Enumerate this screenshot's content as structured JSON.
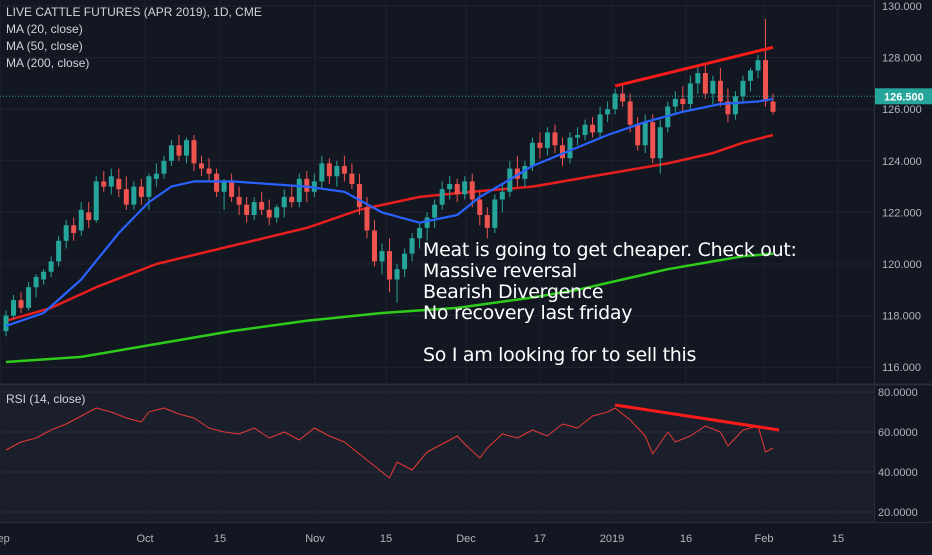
{
  "legend": {
    "title": "LIVE CATTLE FUTURES (APR 2019), 1D, CME",
    "ma20": "MA (20, close)",
    "ma50": "MA (50, close)",
    "ma200": "MA (200, close)"
  },
  "rsi_legend": "RSI (14, close)",
  "note": {
    "line1": "Meat is going to get cheaper. Check out:",
    "line2": "Massive reversal",
    "line3": "Bearish Divergence",
    "line4": "No recovery last friday",
    "line5": "",
    "line6": "So I am looking for to sell this"
  },
  "last_price_label": "126.500",
  "colors": {
    "background": "#131722",
    "up": "#26a69a",
    "down": "#ef5350",
    "ma20": "#2962ff",
    "ma50": "#e91e1e",
    "ma200": "#2ecc1a",
    "rsi": "#e53935",
    "trendline": "#ff1a1a"
  },
  "chart_data": [
    {
      "type": "candlestick",
      "title": "LIVE CATTLE FUTURES (APR 2019), 1D, CME",
      "price_axis_ticks": [
        "130.000",
        "128.000",
        "126.000",
        "124.000",
        "122.000",
        "120.000",
        "118.000",
        "116.000"
      ],
      "time_axis_ticks": [
        "Sep",
        "Oct",
        "15",
        "Nov",
        "15",
        "Dec",
        "17",
        "2019",
        "16",
        "Feb",
        "15"
      ],
      "ylim": [
        115.6,
        130.2
      ],
      "last_price": 126.5,
      "ohlc": [
        [
          117.4,
          118.2,
          117.2,
          118.0
        ],
        [
          118.0,
          118.8,
          117.9,
          118.6
        ],
        [
          118.6,
          118.9,
          118.1,
          118.3
        ],
        [
          118.3,
          119.3,
          118.2,
          119.1
        ],
        [
          119.1,
          119.6,
          118.7,
          119.5
        ],
        [
          119.4,
          119.8,
          119.2,
          119.7
        ],
        [
          119.7,
          120.3,
          119.5,
          120.1
        ],
        [
          120.1,
          121.1,
          119.9,
          120.9
        ],
        [
          120.9,
          121.7,
          120.6,
          121.5
        ],
        [
          121.5,
          121.8,
          120.9,
          121.2
        ],
        [
          121.3,
          122.4,
          121.1,
          122.1
        ],
        [
          122.0,
          122.4,
          121.4,
          121.7
        ],
        [
          121.7,
          123.4,
          121.6,
          123.2
        ],
        [
          123.2,
          123.6,
          122.8,
          123.0
        ],
        [
          123.0,
          123.7,
          122.7,
          123.4
        ],
        [
          123.3,
          123.7,
          122.6,
          122.9
        ],
        [
          122.9,
          123.4,
          122.1,
          122.3
        ],
        [
          122.3,
          123.2,
          122.1,
          123.0
        ],
        [
          123.0,
          123.3,
          122.3,
          122.6
        ],
        [
          122.6,
          123.5,
          122.1,
          123.4
        ],
        [
          123.3,
          123.9,
          123.0,
          123.5
        ],
        [
          123.5,
          124.2,
          123.3,
          124.0
        ],
        [
          124.0,
          124.8,
          123.8,
          124.6
        ],
        [
          124.6,
          125.0,
          124.0,
          124.2
        ],
        [
          124.2,
          124.9,
          123.9,
          124.8
        ],
        [
          124.8,
          125.0,
          123.6,
          123.9
        ],
        [
          123.9,
          124.2,
          123.4,
          123.7
        ],
        [
          123.7,
          124.1,
          123.2,
          123.5
        ],
        [
          123.5,
          123.7,
          122.6,
          122.8
        ],
        [
          122.8,
          123.3,
          122.1,
          123.2
        ],
        [
          123.2,
          123.5,
          122.4,
          122.6
        ],
        [
          122.6,
          123.0,
          121.9,
          122.3
        ],
        [
          122.3,
          122.6,
          121.6,
          121.9
        ],
        [
          121.9,
          122.6,
          121.7,
          122.4
        ],
        [
          122.4,
          122.8,
          121.9,
          122.1
        ],
        [
          122.1,
          122.5,
          121.5,
          121.8
        ],
        [
          121.8,
          122.3,
          121.6,
          122.2
        ],
        [
          122.2,
          122.9,
          121.8,
          122.6
        ],
        [
          122.6,
          123.0,
          122.2,
          122.4
        ],
        [
          122.4,
          123.5,
          122.2,
          123.3
        ],
        [
          123.3,
          123.6,
          122.4,
          122.8
        ],
        [
          122.8,
          123.5,
          122.6,
          123.2
        ],
        [
          123.2,
          124.2,
          122.9,
          123.9
        ],
        [
          123.9,
          124.1,
          123.1,
          123.4
        ],
        [
          123.4,
          124.0,
          123.0,
          123.8
        ],
        [
          123.8,
          124.2,
          123.2,
          123.5
        ],
        [
          123.5,
          123.9,
          122.9,
          123.1
        ],
        [
          123.1,
          123.5,
          121.9,
          122.2
        ],
        [
          122.2,
          122.6,
          121.0,
          121.3
        ],
        [
          121.3,
          121.7,
          119.9,
          120.1
        ],
        [
          120.1,
          120.8,
          119.6,
          120.5
        ],
        [
          120.5,
          121.0,
          118.9,
          119.4
        ],
        [
          119.4,
          120.0,
          118.5,
          119.8
        ],
        [
          119.8,
          120.6,
          119.5,
          120.4
        ],
        [
          120.4,
          121.2,
          120.1,
          121.0
        ],
        [
          121.0,
          121.6,
          120.6,
          121.4
        ],
        [
          121.4,
          122.0,
          120.9,
          121.8
        ],
        [
          121.8,
          122.5,
          121.4,
          122.3
        ],
        [
          122.3,
          123.2,
          122.1,
          122.9
        ],
        [
          122.9,
          123.4,
          122.5,
          123.1
        ],
        [
          123.1,
          123.3,
          122.4,
          122.7
        ],
        [
          122.7,
          123.4,
          122.5,
          123.2
        ],
        [
          123.2,
          123.5,
          122.2,
          122.5
        ],
        [
          122.5,
          122.8,
          121.5,
          121.9
        ],
        [
          121.9,
          122.2,
          121.0,
          121.4
        ],
        [
          121.4,
          122.7,
          121.2,
          122.5
        ],
        [
          122.5,
          123.1,
          122.0,
          122.8
        ],
        [
          122.8,
          124.0,
          122.6,
          123.7
        ],
        [
          123.7,
          124.2,
          123.0,
          123.3
        ],
        [
          123.3,
          124.0,
          123.0,
          123.8
        ],
        [
          123.8,
          124.9,
          123.6,
          124.7
        ],
        [
          124.7,
          125.1,
          124.1,
          124.5
        ],
        [
          124.5,
          125.3,
          124.2,
          125.1
        ],
        [
          125.1,
          125.4,
          124.3,
          124.6
        ],
        [
          124.6,
          124.9,
          123.8,
          124.1
        ],
        [
          124.1,
          125.1,
          123.9,
          124.9
        ],
        [
          124.9,
          125.3,
          124.6,
          125.0
        ],
        [
          125.0,
          125.6,
          124.8,
          125.4
        ],
        [
          125.4,
          125.7,
          124.9,
          125.1
        ],
        [
          125.1,
          126.1,
          124.9,
          125.8
        ],
        [
          125.8,
          126.3,
          125.5,
          126.0
        ],
        [
          126.0,
          126.8,
          125.8,
          126.6
        ],
        [
          126.6,
          127.0,
          126.1,
          126.3
        ],
        [
          126.3,
          126.6,
          125.1,
          125.4
        ],
        [
          125.4,
          125.7,
          124.4,
          124.6
        ],
        [
          124.6,
          125.8,
          124.3,
          125.5
        ],
        [
          125.5,
          125.8,
          123.9,
          124.1
        ],
        [
          124.1,
          125.6,
          123.5,
          125.3
        ],
        [
          125.3,
          126.3,
          125.1,
          126.1
        ],
        [
          126.1,
          126.7,
          125.8,
          126.4
        ],
        [
          126.4,
          126.9,
          125.9,
          126.2
        ],
        [
          126.2,
          127.3,
          126.0,
          127.0
        ],
        [
          127.0,
          127.7,
          126.6,
          127.4
        ],
        [
          127.4,
          127.8,
          126.4,
          126.6
        ],
        [
          126.6,
          127.3,
          126.2,
          127.1
        ],
        [
          127.1,
          127.6,
          126.1,
          126.3
        ],
        [
          126.3,
          126.8,
          125.5,
          125.8
        ],
        [
          125.8,
          126.7,
          125.6,
          126.5
        ],
        [
          126.5,
          127.3,
          126.3,
          127.1
        ],
        [
          127.1,
          127.6,
          126.7,
          127.5
        ],
        [
          127.5,
          128.1,
          127.2,
          127.9
        ],
        [
          127.9,
          129.5,
          126.1,
          126.3
        ],
        [
          126.3,
          126.6,
          125.8,
          125.9
        ]
      ],
      "ma20": [
        [
          0,
          117.6
        ],
        [
          5,
          118.1
        ],
        [
          10,
          119.4
        ],
        [
          15,
          121.2
        ],
        [
          19,
          122.4
        ],
        [
          22,
          123.0
        ],
        [
          25,
          123.2
        ],
        [
          30,
          123.2
        ],
        [
          35,
          123.1
        ],
        [
          40,
          123.0
        ],
        [
          45,
          122.8
        ],
        [
          50,
          122.0
        ],
        [
          55,
          121.6
        ],
        [
          60,
          121.9
        ],
        [
          63,
          122.6
        ],
        [
          66,
          123.1
        ],
        [
          70,
          123.8
        ],
        [
          75,
          124.4
        ],
        [
          80,
          125.0
        ],
        [
          85,
          125.5
        ],
        [
          90,
          125.9
        ],
        [
          95,
          126.2
        ],
        [
          100,
          126.3
        ],
        [
          102,
          126.4
        ]
      ],
      "ma50": [
        [
          0,
          117.8
        ],
        [
          6,
          118.3
        ],
        [
          12,
          119.1
        ],
        [
          20,
          120.0
        ],
        [
          30,
          120.7
        ],
        [
          40,
          121.4
        ],
        [
          47,
          122.1
        ],
        [
          55,
          122.6
        ],
        [
          62,
          122.8
        ],
        [
          70,
          123.0
        ],
        [
          76,
          123.3
        ],
        [
          82,
          123.6
        ],
        [
          88,
          123.9
        ],
        [
          94,
          124.3
        ],
        [
          98,
          124.7
        ],
        [
          102,
          125.0
        ]
      ],
      "ma200": [
        [
          0,
          116.2
        ],
        [
          10,
          116.4
        ],
        [
          20,
          116.9
        ],
        [
          30,
          117.4
        ],
        [
          40,
          117.8
        ],
        [
          50,
          118.1
        ],
        [
          60,
          118.3
        ],
        [
          70,
          118.7
        ],
        [
          76,
          119.0
        ],
        [
          82,
          119.4
        ],
        [
          88,
          119.8
        ],
        [
          94,
          120.1
        ],
        [
          98,
          120.3
        ],
        [
          102,
          120.4
        ]
      ],
      "trendline": [
        [
          81,
          126.9
        ],
        [
          102,
          128.4
        ]
      ]
    },
    {
      "type": "line",
      "title": "RSI (14, close)",
      "price_axis_ticks": [
        "80.0000",
        "60.0000",
        "40.0000",
        "20.0000"
      ],
      "ylim": [
        17,
        82
      ],
      "rsi": [
        [
          0,
          51
        ],
        [
          2,
          55
        ],
        [
          4,
          57
        ],
        [
          6,
          61
        ],
        [
          8,
          64
        ],
        [
          10,
          68
        ],
        [
          12,
          72
        ],
        [
          14,
          70
        ],
        [
          16,
          67
        ],
        [
          18,
          65
        ],
        [
          19,
          70
        ],
        [
          21,
          72
        ],
        [
          23,
          69
        ],
        [
          25,
          67
        ],
        [
          27,
          62
        ],
        [
          29,
          60
        ],
        [
          31,
          59
        ],
        [
          33,
          62
        ],
        [
          35,
          57
        ],
        [
          37,
          60
        ],
        [
          39,
          56
        ],
        [
          41,
          62
        ],
        [
          43,
          58
        ],
        [
          45,
          55
        ],
        [
          47,
          49
        ],
        [
          49,
          43
        ],
        [
          51,
          37
        ],
        [
          52,
          45
        ],
        [
          54,
          41
        ],
        [
          56,
          50
        ],
        [
          58,
          54
        ],
        [
          60,
          58
        ],
        [
          61,
          54
        ],
        [
          63,
          47
        ],
        [
          64,
          52
        ],
        [
          66,
          59
        ],
        [
          68,
          57
        ],
        [
          70,
          61
        ],
        [
          72,
          58
        ],
        [
          74,
          64
        ],
        [
          76,
          62
        ],
        [
          78,
          68
        ],
        [
          80,
          70
        ],
        [
          81,
          72
        ],
        [
          83,
          66
        ],
        [
          85,
          58
        ],
        [
          86,
          49
        ],
        [
          88,
          60
        ],
        [
          89,
          55
        ],
        [
          91,
          58
        ],
        [
          93,
          63
        ],
        [
          95,
          60
        ],
        [
          96,
          53
        ],
        [
          98,
          61
        ],
        [
          100,
          63
        ],
        [
          101,
          50
        ],
        [
          102,
          52
        ]
      ],
      "trendline": [
        [
          81,
          73.5
        ],
        [
          102,
          61
        ]
      ]
    }
  ]
}
